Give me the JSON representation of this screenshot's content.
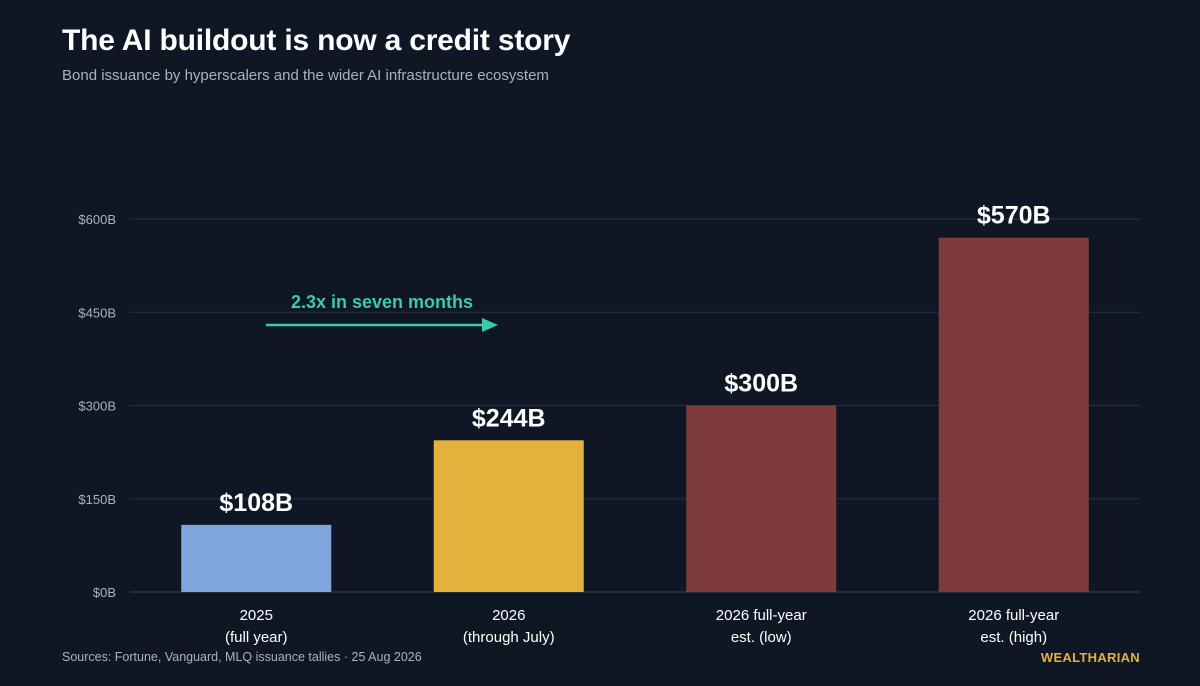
{
  "header": {
    "title": "The AI buildout is now a credit story",
    "subtitle": "Bond issuance by hyperscalers and the wider AI infrastructure ecosystem"
  },
  "chart_data": {
    "type": "bar",
    "categories": [
      [
        "2025",
        "(full year)"
      ],
      [
        "2026",
        "(through July)"
      ],
      [
        "2026 full-year",
        "est. (low)"
      ],
      [
        "2026 full-year",
        "est. (high)"
      ]
    ],
    "values": [
      108,
      244,
      300,
      570
    ],
    "value_labels": [
      "$108B",
      "$244B",
      "$300B",
      "$570B"
    ],
    "colors": [
      "#7fa7dc",
      "#e3b23c",
      "#7d3b3b",
      "#7d3b3b"
    ],
    "yticks": [
      0,
      150,
      300,
      450,
      600
    ],
    "ytick_labels": [
      "$0B",
      "$150B",
      "$300B",
      "$450B",
      "$600B"
    ],
    "ylim": [
      0,
      600
    ],
    "grid": true,
    "annotation": {
      "text": "2.3x in seven months",
      "color": "#3fc7b0"
    }
  },
  "footer": {
    "sources": "Sources: Fortune, Vanguard, MLQ issuance tallies  ·  25 Aug 2026",
    "brand": "WEALTHARIAN"
  }
}
